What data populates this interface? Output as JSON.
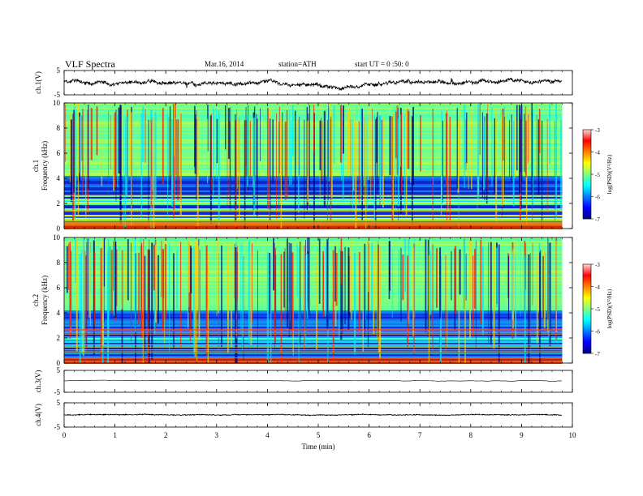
{
  "header": {
    "title": "VLF  Spectra",
    "date": "Mar.16, 2014",
    "station": "station=ATH",
    "start": "start  UT  =    0 :50: 0"
  },
  "chart_data": [
    {
      "type": "line",
      "ylabel": "ch.1(V)",
      "ylim": [
        -5,
        5
      ],
      "y_ticklabels": [
        "5",
        "-5"
      ],
      "description_values": {
        "baseline": 0.2,
        "noise_amp": 1.2
      }
    },
    {
      "type": "heatmap",
      "ylabel_channel": "ch.1",
      "ylabel": "Frequency (kHz)",
      "ylim": [
        0,
        10
      ],
      "y_ticks": [
        0,
        2,
        4,
        6,
        8,
        10
      ],
      "colorbar": {
        "label": "log(PSD)(V²/Hz)",
        "range": [
          -7,
          -3
        ],
        "ticks": [
          "-3",
          "-4",
          "-5",
          "-6",
          "-7"
        ]
      }
    },
    {
      "type": "heatmap",
      "ylabel_channel": "ch.2",
      "ylabel": "Frequency (kHz)",
      "ylim": [
        0,
        10
      ],
      "y_ticks": [
        0,
        2,
        4,
        6,
        8,
        10
      ],
      "colorbar": {
        "label": "log(PSD)(V²/Hz)",
        "range": [
          -7,
          -3
        ],
        "ticks": [
          "-3",
          "-4",
          "-5",
          "-6",
          "-7"
        ]
      }
    },
    {
      "type": "line",
      "ylabel": "ch.3(V)",
      "ylim": [
        -5,
        5
      ],
      "y_ticklabels": [
        "5",
        "-5"
      ],
      "description_values": {
        "baseline": 0.3,
        "noise_amp": 0.05
      }
    },
    {
      "type": "line",
      "ylabel": "ch.4(V)",
      "ylim": [
        -5,
        5
      ],
      "y_ticklabels": [
        "5",
        "-5"
      ],
      "description_values": {
        "baseline": 0.0,
        "noise_amp": 0.35
      }
    }
  ],
  "x_axis": {
    "label": "Time (min)",
    "ticks": [
      "0",
      "1",
      "2",
      "3",
      "4",
      "5",
      "6",
      "7",
      "8",
      "9",
      "10"
    ],
    "range": [
      0,
      10
    ],
    "data_end": 9.8
  }
}
